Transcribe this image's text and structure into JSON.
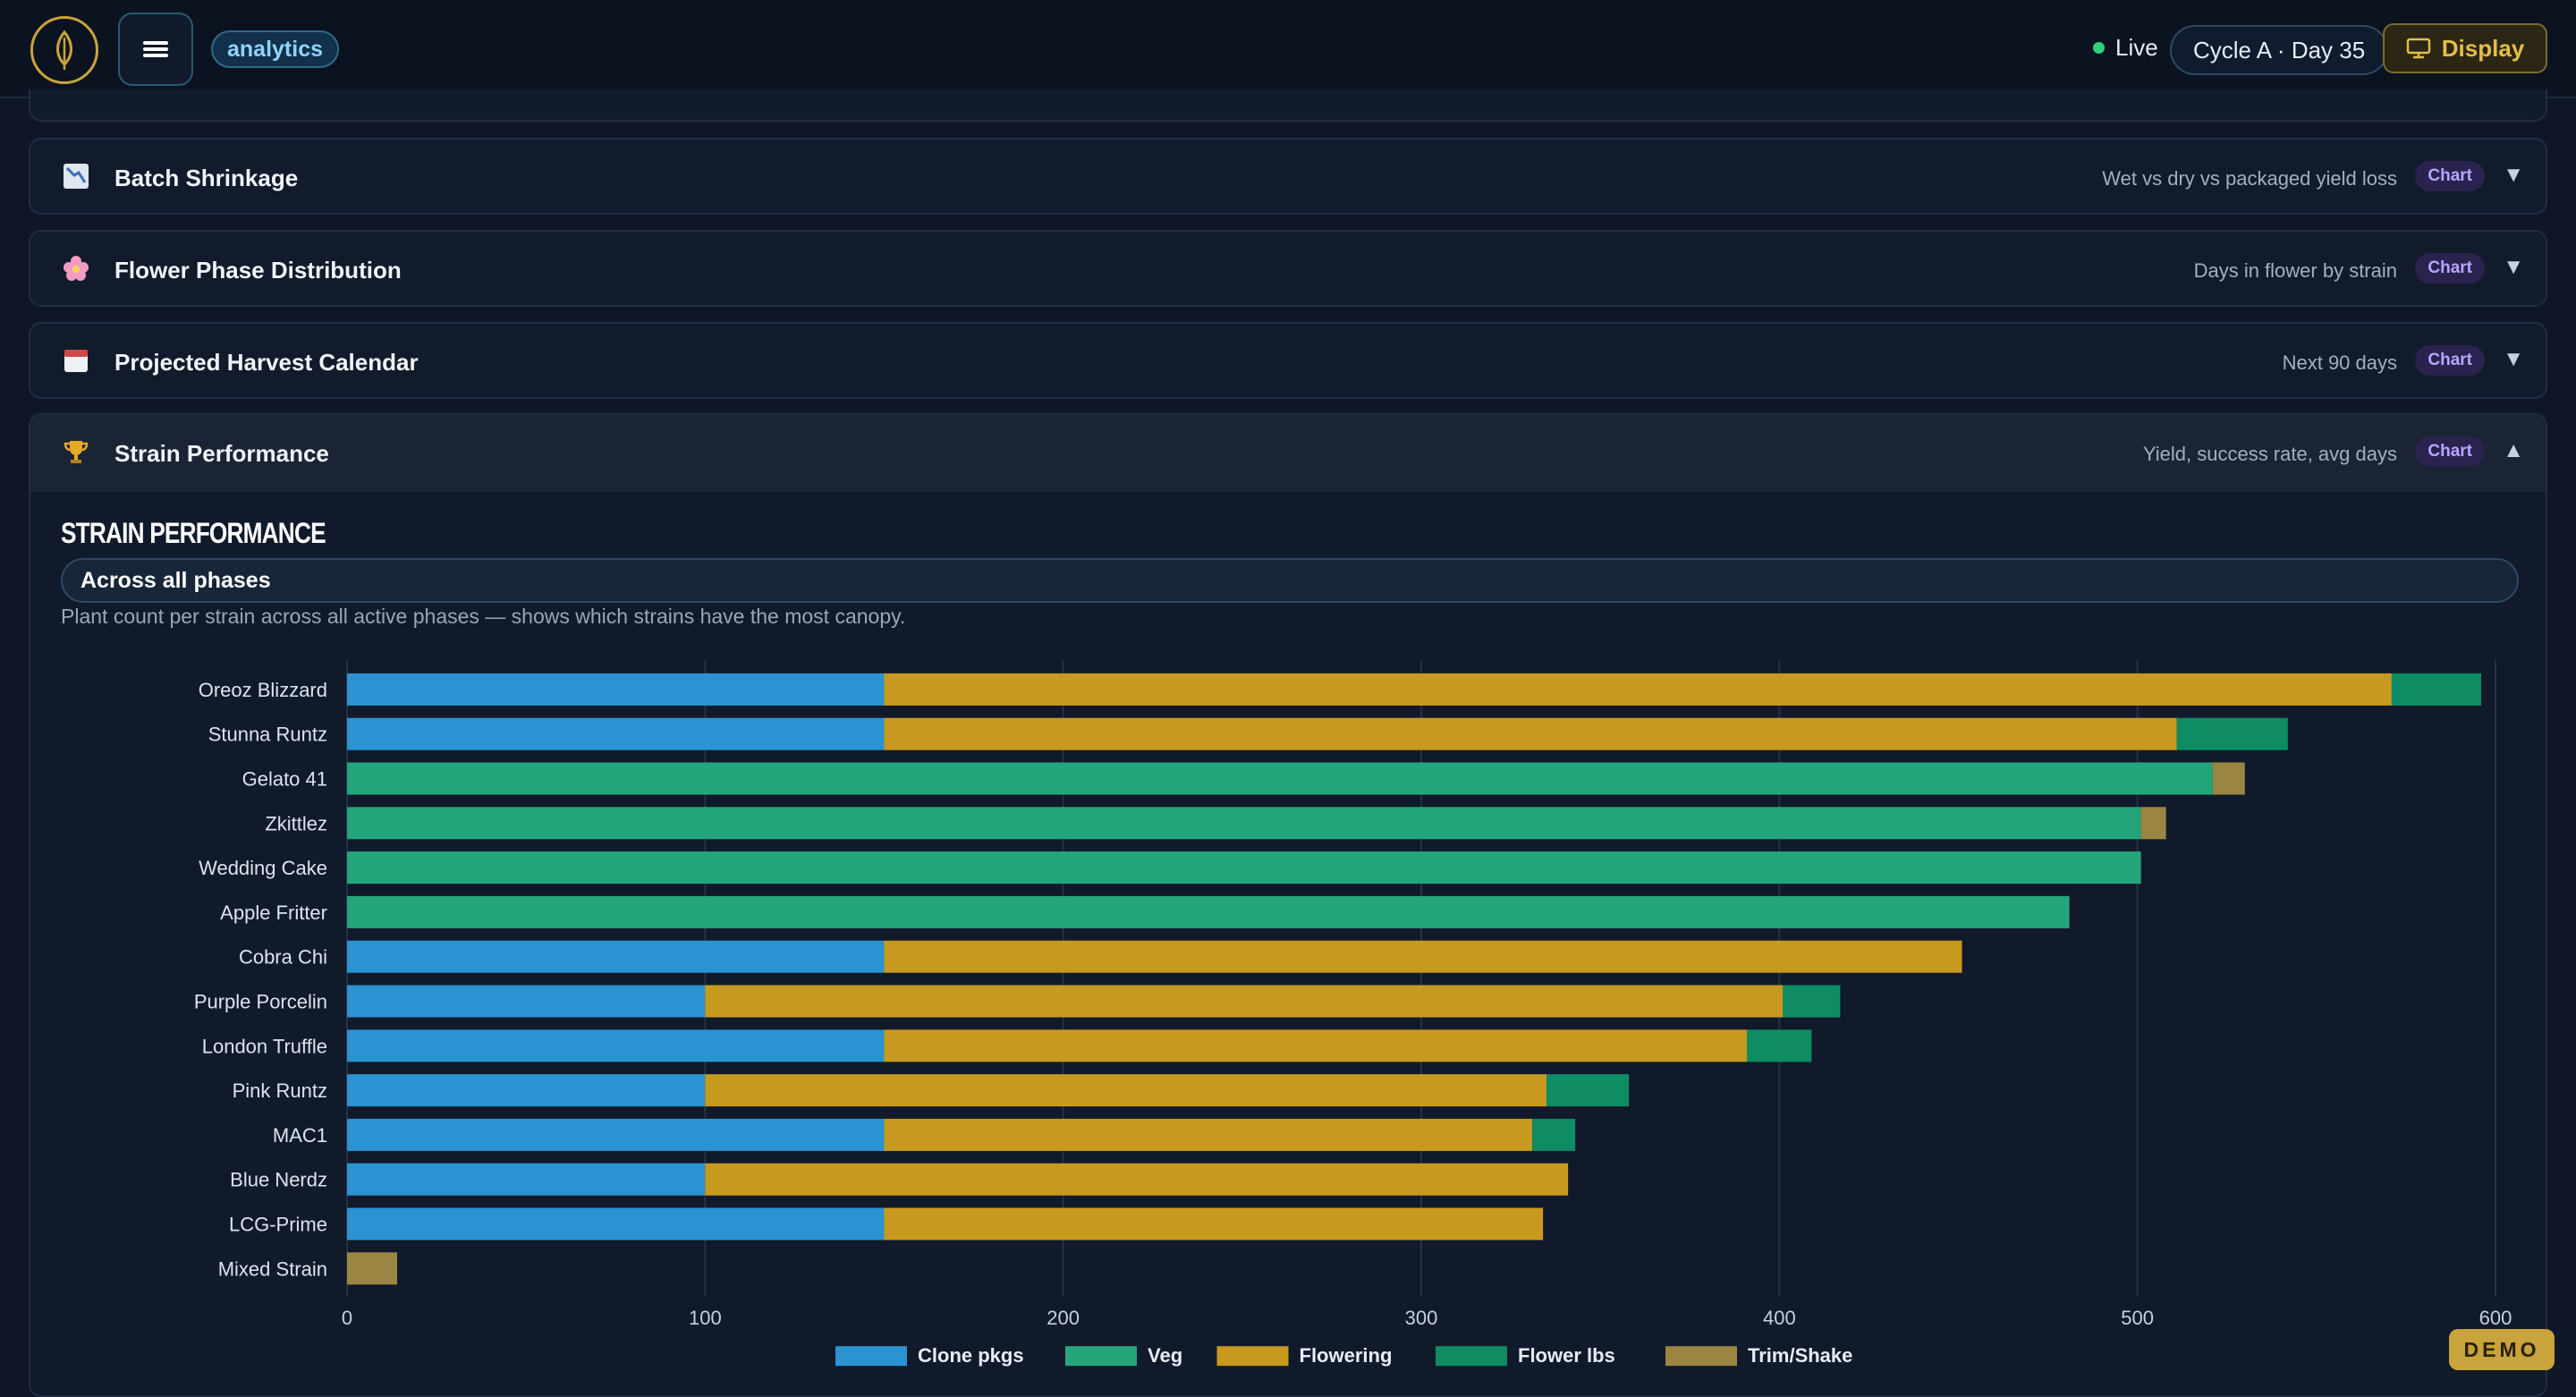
{
  "topbar": {
    "app_tag": "analytics",
    "live_label": "Live",
    "cycle_label": "Cycle A · Day 35",
    "display_label": "Display"
  },
  "cards": [
    {
      "icon": "chart-down-icon",
      "title": "Batch Shrinkage",
      "desc": "Wet vs dry vs packaged yield loss",
      "badge": "Chart",
      "state": "collapsed"
    },
    {
      "icon": "flower-icon",
      "title": "Flower Phase Distribution",
      "desc": "Days in flower by strain",
      "badge": "Chart",
      "state": "collapsed"
    },
    {
      "icon": "calendar-icon",
      "title": "Projected Harvest Calendar",
      "desc": "Next 90 days",
      "badge": "Chart",
      "state": "collapsed"
    },
    {
      "icon": "trophy-icon",
      "title": "Strain Performance",
      "desc": "Yield, success rate, avg days",
      "badge": "Chart",
      "state": "expanded"
    }
  ],
  "panel": {
    "section_title": "Strain Performance",
    "pill_label": "Across all phases",
    "subtitle": "Plant count per strain across all active phases — shows which strains have the most canopy."
  },
  "chart_data": {
    "type": "bar",
    "orientation": "horizontal",
    "stacked": true,
    "categories": [
      "Oreoz Blizzard",
      "Stunna Runtz",
      "Gelato 41",
      "Zkittlez",
      "Wedding Cake",
      "Apple Fritter",
      "Cobra Chi",
      "Purple Porcelin",
      "London Truffle",
      "Pink Runtz",
      "MAC1",
      "Blue Nerdz",
      "LCG-Prime",
      "Mixed Strain"
    ],
    "series": [
      {
        "name": "Clone pkgs",
        "color": "#2b93d1",
        "values": [
          150,
          150,
          0,
          0,
          0,
          0,
          150,
          100,
          150,
          100,
          150,
          100,
          150,
          0
        ]
      },
      {
        "name": "Veg",
        "color": "#25a57c",
        "values": [
          0,
          0,
          521,
          501,
          501,
          481,
          0,
          0,
          0,
          0,
          0,
          0,
          0,
          0
        ]
      },
      {
        "name": "Flowering",
        "color": "#c7991f",
        "values": [
          421,
          361,
          0,
          0,
          0,
          0,
          301,
          301,
          241,
          235,
          181,
          241,
          184,
          0
        ]
      },
      {
        "name": "Flower lbs",
        "color": "#0e8c64",
        "values": [
          25,
          31,
          0,
          0,
          0,
          0,
          0,
          16,
          18,
          23,
          12,
          0,
          0,
          0
        ]
      },
      {
        "name": "Trim/Shake",
        "color": "#9b8542",
        "values": [
          0,
          0,
          9,
          7,
          0,
          0,
          0,
          0,
          0,
          0,
          0,
          0,
          0,
          14
        ]
      }
    ],
    "xlim": [
      0,
      600
    ],
    "xticks": [
      0,
      100,
      200,
      300,
      400,
      500,
      600
    ],
    "xlabel": "",
    "ylabel": "",
    "grid": "vertical",
    "legend": "bottom"
  },
  "demo_label": "DEMO"
}
